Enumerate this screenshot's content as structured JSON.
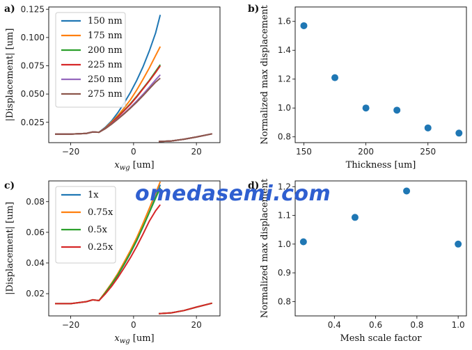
{
  "watermark": "omedasemi.com",
  "chart_data": [
    {
      "panel_label": "a)",
      "type": "line",
      "xlabel": "x",
      "xlabel_sub": "wg",
      "xlabel_unit": " [um]",
      "ylabel": "|Displacement| [um]",
      "xlim": [
        -27,
        27.5
      ],
      "ylim": [
        0.007,
        0.127
      ],
      "xticks": [
        -20,
        0,
        20
      ],
      "xtick_labels": [
        "−20",
        "0",
        "20"
      ],
      "yticks": [
        0.025,
        0.05,
        0.075,
        0.1,
        0.125
      ],
      "ytick_labels": [
        "0.025",
        "0.050",
        "0.075",
        "0.100",
        "0.125"
      ],
      "legend_position": "upper-left",
      "shared_x": [
        -25,
        -20,
        -15,
        -13,
        -11,
        -9,
        -7,
        -5,
        -3,
        -1,
        1,
        3,
        5,
        7,
        8.5
      ],
      "series": [
        {
          "name": "150 nm",
          "color": "#1f77b4",
          "values": [
            0.0145,
            0.0145,
            0.0152,
            0.0165,
            0.0162,
            0.0205,
            0.0262,
            0.0335,
            0.042,
            0.0515,
            0.062,
            0.074,
            0.088,
            0.104,
            0.12
          ]
        },
        {
          "name": "175 nm",
          "color": "#ff7f0e",
          "values": [
            0.0145,
            0.0145,
            0.0152,
            0.0165,
            0.0162,
            0.02,
            0.0252,
            0.031,
            0.0375,
            0.045,
            0.0535,
            0.063,
            0.073,
            0.084,
            0.092
          ]
        },
        {
          "name": "200 nm",
          "color": "#2ca02c",
          "values": [
            0.0145,
            0.0145,
            0.0152,
            0.0165,
            0.0162,
            0.0198,
            0.0245,
            0.03,
            0.0355,
            0.0415,
            0.048,
            0.055,
            0.062,
            0.07,
            0.076
          ]
        },
        {
          "name": "225 nm",
          "color": "#d62728",
          "values": [
            0.0145,
            0.0145,
            0.0152,
            0.0165,
            0.0162,
            0.0197,
            0.0243,
            0.0297,
            0.0352,
            0.041,
            0.0475,
            0.0545,
            0.0615,
            0.069,
            0.075
          ]
        },
        {
          "name": "250 nm",
          "color": "#9467bd",
          "values": [
            0.0145,
            0.0145,
            0.0152,
            0.0165,
            0.0162,
            0.0194,
            0.0236,
            0.0282,
            0.033,
            0.0382,
            0.0438,
            0.0497,
            0.056,
            0.0625,
            0.067
          ]
        },
        {
          "name": "275 nm",
          "color": "#8c564b",
          "values": [
            0.0145,
            0.0145,
            0.0152,
            0.0165,
            0.0162,
            0.0193,
            0.0233,
            0.0278,
            0.0325,
            0.0375,
            0.0428,
            0.0485,
            0.0545,
            0.0605,
            0.064
          ]
        }
      ],
      "right_segment": {
        "x": [
          8,
          12,
          16,
          20,
          25
        ],
        "y": [
          0.008,
          0.0085,
          0.01,
          0.012,
          0.0148
        ]
      }
    },
    {
      "panel_label": "b)",
      "type": "scatter",
      "xlabel": "Thickness [um]",
      "ylabel": "Normalized max displacement",
      "xlim": [
        143,
        281
      ],
      "ylim": [
        0.76,
        1.7
      ],
      "xticks": [
        150,
        200,
        250
      ],
      "xtick_labels": [
        "150",
        "200",
        "250"
      ],
      "yticks": [
        0.8,
        1.0,
        1.2,
        1.4,
        1.6
      ],
      "ytick_labels": [
        "0.8",
        "1.0",
        "1.2",
        "1.4",
        "1.6"
      ],
      "color": "#1f77b4",
      "x": [
        150,
        175,
        200,
        225,
        250,
        275
      ],
      "y": [
        1.57,
        1.21,
        1.0,
        0.985,
        0.862,
        0.826
      ]
    },
    {
      "panel_label": "c)",
      "type": "line",
      "xlabel": "x",
      "xlabel_sub": "wg",
      "xlabel_unit": " [um]",
      "ylabel": "|Displacement| [um]",
      "xlim": [
        -27,
        27.5
      ],
      "ylim": [
        0.0055,
        0.0935
      ],
      "xticks": [
        -20,
        0,
        20
      ],
      "xtick_labels": [
        "−20",
        "0",
        "20"
      ],
      "yticks": [
        0.02,
        0.04,
        0.06,
        0.08
      ],
      "ytick_labels": [
        "0.02",
        "0.04",
        "0.06",
        "0.08"
      ],
      "legend_position": "upper-left",
      "shared_x": [
        -25,
        -20,
        -15,
        -13,
        -11,
        -9,
        -7,
        -5,
        -3,
        -1,
        1,
        3,
        5,
        7,
        8.5
      ],
      "series": [
        {
          "name": "1x",
          "color": "#1f77b4",
          "values": [
            0.0135,
            0.0135,
            0.0148,
            0.016,
            0.0155,
            0.0205,
            0.026,
            0.032,
            0.039,
            0.0465,
            0.0545,
            0.0635,
            0.073,
            0.083,
            0.091
          ]
        },
        {
          "name": "0.75x",
          "color": "#ff7f0e",
          "values": [
            0.0135,
            0.0135,
            0.0148,
            0.016,
            0.0155,
            0.021,
            0.0268,
            0.0332,
            0.0405,
            0.0482,
            0.0565,
            0.0658,
            0.0755,
            0.0855,
            0.093
          ]
        },
        {
          "name": "0.5x",
          "color": "#2ca02c",
          "values": [
            0.0135,
            0.0135,
            0.0148,
            0.016,
            0.0155,
            0.0205,
            0.0262,
            0.0322,
            0.0392,
            0.0467,
            0.0548,
            0.0636,
            0.0728,
            0.0822,
            0.089
          ]
        },
        {
          "name": "0.25x",
          "color": "#d62728",
          "values": [
            0.0135,
            0.0135,
            0.0148,
            0.016,
            0.0155,
            0.0198,
            0.0248,
            0.0305,
            0.0368,
            0.0435,
            0.0508,
            0.0588,
            0.0672,
            0.074,
            0.078
          ]
        }
      ],
      "right_segment": {
        "x": [
          8,
          12,
          16,
          20,
          25
        ],
        "y": [
          0.007,
          0.0075,
          0.009,
          0.0112,
          0.0138
        ]
      }
    },
    {
      "panel_label": "d)",
      "type": "scatter",
      "xlabel": "Mesh scale factor",
      "ylabel": "Normalized max displacement",
      "xlim": [
        0.21,
        1.04
      ],
      "ylim": [
        0.75,
        1.22
      ],
      "xticks": [
        0.4,
        0.6,
        0.8,
        1.0
      ],
      "xtick_labels": [
        "0.4",
        "0.6",
        "0.8",
        "1.0"
      ],
      "yticks": [
        0.8,
        0.9,
        1.0,
        1.1,
        1.2
      ],
      "ytick_labels": [
        "0.8",
        "0.9",
        "1.0",
        "1.1",
        "1.2"
      ],
      "color": "#1f77b4",
      "x": [
        0.25,
        0.5,
        0.75,
        1.0
      ],
      "y": [
        1.008,
        1.093,
        1.185,
        1.0
      ]
    }
  ]
}
